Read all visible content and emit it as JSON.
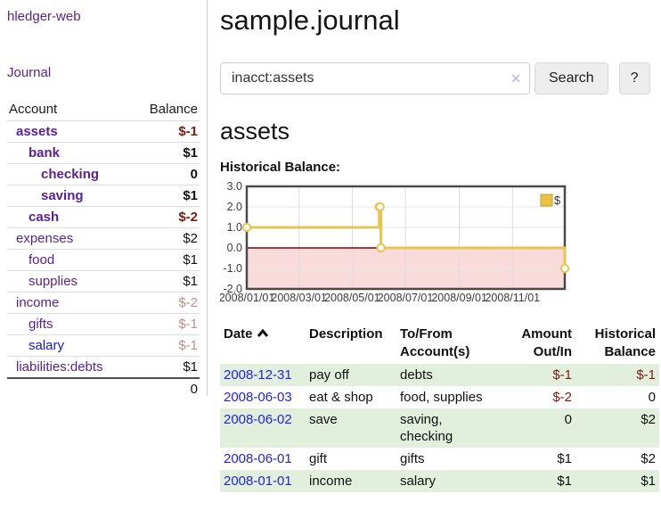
{
  "app": {
    "brand": "hledger-web"
  },
  "sidebar": {
    "nav": {
      "journal": "Journal"
    },
    "table_headers": {
      "account": "Account",
      "balance": "Balance"
    },
    "accounts": [
      {
        "name": "assets",
        "balance": "$-1",
        "level": 1,
        "bold": true,
        "link": "purple",
        "balance_style": "neg-strong"
      },
      {
        "name": "bank",
        "balance": "$1",
        "level": 2,
        "bold": true,
        "link": "purple",
        "balance_style": "normal"
      },
      {
        "name": "checking",
        "balance": "0",
        "level": 3,
        "bold": true,
        "link": "purple",
        "balance_style": "normal"
      },
      {
        "name": "saving",
        "balance": "$1",
        "level": 3,
        "bold": true,
        "link": "purple",
        "balance_style": "normal"
      },
      {
        "name": "cash",
        "balance": "$-2",
        "level": 2,
        "bold": true,
        "link": "purple",
        "balance_style": "neg-strong"
      },
      {
        "name": "expenses",
        "balance": "$2",
        "level": 1,
        "bold": false,
        "link": "purple",
        "balance_style": "normal"
      },
      {
        "name": "food",
        "balance": "$1",
        "level": 2,
        "bold": false,
        "link": "purple",
        "balance_style": "normal"
      },
      {
        "name": "supplies",
        "balance": "$1",
        "level": 2,
        "bold": false,
        "link": "purple",
        "balance_style": "normal"
      },
      {
        "name": "income",
        "balance": "$-2",
        "level": 1,
        "bold": false,
        "link": "purple",
        "balance_style": "neg-faded"
      },
      {
        "name": "gifts",
        "balance": "$-1",
        "level": 2,
        "bold": false,
        "link": "purple",
        "balance_style": "neg-faded"
      },
      {
        "name": "salary",
        "balance": "$-1",
        "level": 2,
        "bold": false,
        "link": "blue",
        "balance_style": "neg-faded"
      },
      {
        "name": "liabilities:debts",
        "balance": "$1",
        "level": 1,
        "bold": false,
        "link": "purple",
        "balance_style": "normal"
      }
    ],
    "total": "0"
  },
  "header": {
    "title": "sample.journal"
  },
  "search": {
    "value": "inacct:assets",
    "clear_icon": "✕",
    "button_label": "Search",
    "help_label": "?"
  },
  "account_page": {
    "heading": "assets",
    "chart_title": "Historical Balance:"
  },
  "chart_data": {
    "type": "line",
    "title": "Historical Balance:",
    "step": true,
    "x_range": [
      "2008-01-01",
      "2008-12-31"
    ],
    "ylim": [
      -2.0,
      3.0
    ],
    "y_tick_labels": [
      "3.0",
      "2.0",
      "1.0",
      "0.0",
      "-1.0",
      "-2.0"
    ],
    "x_tick_labels": [
      "2008/01/01",
      "2008/03/01",
      "2008/05/01",
      "2008/07/01",
      "2008/09/01",
      "2008/11/01"
    ],
    "series": [
      {
        "name": "$",
        "color": "#E8C44C",
        "points": [
          [
            "2008-01-01",
            1
          ],
          [
            "2008-06-01",
            2
          ],
          [
            "2008-06-02",
            2
          ],
          [
            "2008-06-03",
            0
          ],
          [
            "2008-12-31",
            -1
          ]
        ]
      }
    ],
    "legend": {
      "label": "$",
      "position": "top-right"
    },
    "grid": true,
    "zero_line_color": "#8b0000",
    "negative_region_color": "#f9dbdb",
    "plot_border_color": "#4a4a4a"
  },
  "register": {
    "headers": {
      "date": "Date",
      "description": "Description",
      "accounts": "To/From Account(s)",
      "amount": "Amount Out/In",
      "balance": "Historical Balance"
    },
    "rows": [
      {
        "date": "2008-12-31",
        "description": "pay off",
        "accounts": "debts",
        "amount": "$-1",
        "balance": "$-1"
      },
      {
        "date": "2008-06-03",
        "description": "eat & shop",
        "accounts": "food, supplies",
        "amount": "$-2",
        "balance": "0"
      },
      {
        "date": "2008-06-02",
        "description": "save",
        "accounts": "saving, checking",
        "amount": "0",
        "balance": "$2"
      },
      {
        "date": "2008-06-01",
        "description": "gift",
        "accounts": "gifts",
        "amount": "$1",
        "balance": "$2"
      },
      {
        "date": "2008-01-01",
        "description": "income",
        "accounts": "salary",
        "amount": "$1",
        "balance": "$1"
      }
    ]
  },
  "colors": {
    "link_purple": "#5a2194",
    "link_blue": "#1414e8",
    "negative": "#7d1b11",
    "negative_faded": "#c28d8d",
    "row_highlight_green": "#e1efdc",
    "chart_line": "#E8C44C"
  }
}
